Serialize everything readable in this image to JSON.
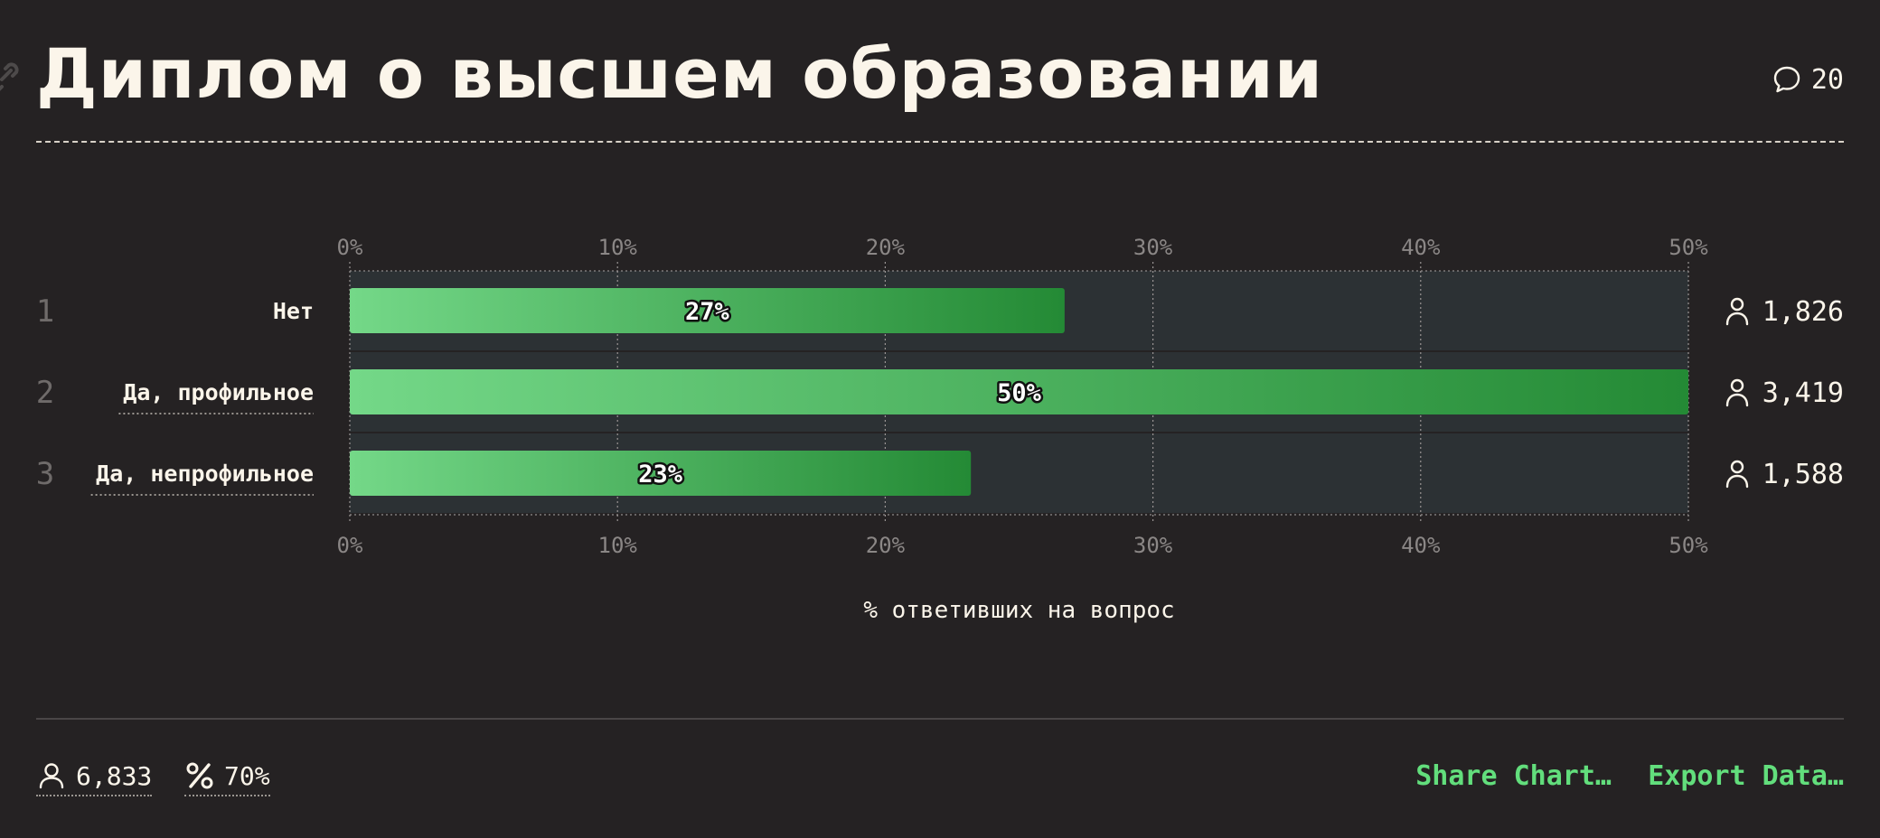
{
  "header": {
    "title": "Диплом о высшем образовании",
    "comment_count": "20"
  },
  "chart_data": {
    "type": "bar",
    "orientation": "horizontal",
    "categories": [
      "Нет",
      "Да, профильное",
      "Да, непрофильное"
    ],
    "row_numbers": [
      "1",
      "2",
      "3"
    ],
    "values": [
      26.7,
      50.0,
      23.2
    ],
    "value_labels": [
      "27%",
      "50%",
      "23%"
    ],
    "counts": [
      "1,826",
      "3,419",
      "1,588"
    ],
    "xlabel": "% ответивших на вопрос",
    "xlim": [
      0,
      50
    ],
    "ticks": [
      0,
      10,
      20,
      30,
      40,
      50
    ],
    "tick_labels": [
      "0%",
      "10%",
      "20%",
      "30%",
      "40%",
      "50%"
    ],
    "axis_ticks_top_and_bottom": true,
    "grid": true
  },
  "footer": {
    "respondents": "6,833",
    "response_rate": "70%",
    "share_label": "Share Chart…",
    "export_label": "Export Data…"
  },
  "colors": {
    "background": "#252223",
    "text": "#fbf5ea",
    "bar_gradient_start": "#74d888",
    "bar_gradient_end": "#248a35",
    "track": "#2c3134",
    "accent_link": "#62de7c"
  },
  "icons": {
    "title_anchor": "link-icon",
    "comments": "speech-bubble-icon",
    "respondents": "person-icon",
    "response_rate": "percent-icon"
  }
}
